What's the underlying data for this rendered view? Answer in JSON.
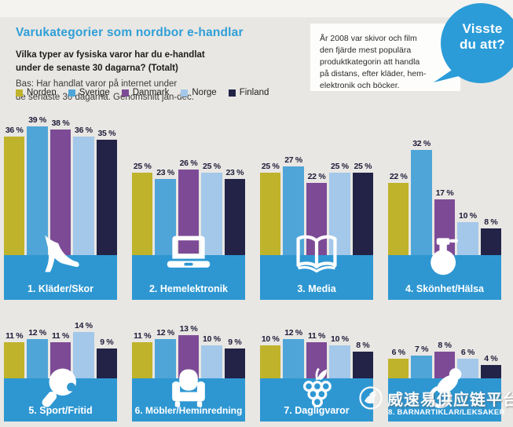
{
  "header": {
    "title": "Varukategorier som nordbor e-handlar",
    "question": "Vilka typer av fysiska varor har du e-handlat\nunder de senaste 30 dagarna? (Totalt)",
    "base_note": "Bas: Har handlat varor på internet under\nde senaste 30 dagarna. Genomsnitt jan-dec."
  },
  "legend": {
    "items": [
      {
        "label": "Norden",
        "color": "#bfb32b"
      },
      {
        "label": "Sverige",
        "color": "#4fa5d8"
      },
      {
        "label": "Danmark",
        "color": "#7d4b96"
      },
      {
        "label": "Norge",
        "color": "#a3c8ea"
      },
      {
        "label": "Finland",
        "color": "#222347"
      }
    ]
  },
  "callout": {
    "body": "År 2008 var skivor och film\nden fjärde mest populära\nproduktkategorin att handla\npå distans, efter kläder, hem-\nelektronik och böcker.",
    "bubble": "Visste\ndu att?"
  },
  "chart_data": {
    "type": "bar",
    "unit": "%",
    "ylim": [
      0,
      40
    ],
    "grid": false,
    "legend_position": "top-left",
    "series": [
      "Norden",
      "Sverige",
      "Danmark",
      "Norge",
      "Finland"
    ],
    "series_colors": [
      "#bfb32b",
      "#4fa5d8",
      "#7d4b96",
      "#a3c8ea",
      "#222347"
    ],
    "groups": [
      {
        "label": "1. Kläder/Skor",
        "icon": "high-heel-shoe-icon",
        "values": [
          36,
          39,
          38,
          36,
          35
        ]
      },
      {
        "label": "2. Hemelektronik",
        "icon": "laptop-icon",
        "values": [
          25,
          23,
          26,
          25,
          23
        ]
      },
      {
        "label": "3. Media",
        "icon": "open-book-icon",
        "values": [
          25,
          27,
          22,
          25,
          25
        ]
      },
      {
        "label": "4. Skönhet/Hälsa",
        "icon": "perfume-bottle-icon",
        "values": [
          22,
          32,
          17,
          10,
          8
        ]
      },
      {
        "label": "5. Sport/Fritid",
        "icon": "table-tennis-paddle-icon",
        "values": [
          11,
          12,
          11,
          14,
          9
        ]
      },
      {
        "label": "6. Möbler/Heminredning",
        "icon": "armchair-icon",
        "values": [
          11,
          12,
          13,
          10,
          9
        ]
      },
      {
        "label": "7. Dagligvaror",
        "icon": "grapes-icon",
        "values": [
          10,
          12,
          11,
          10,
          8
        ]
      },
      {
        "label": "8. Barnartiklar/Leksaker",
        "icon": "pacifier-icon",
        "values": [
          6,
          7,
          8,
          6,
          4
        ]
      }
    ]
  },
  "watermark": {
    "text": "威速易供应链平台"
  },
  "colors": {
    "background": "#e9e7e3",
    "title": "#2f9fd8",
    "base_band": "#2e97d2",
    "bubble": "#2b9cd8",
    "value_label": "#1c1b38"
  }
}
